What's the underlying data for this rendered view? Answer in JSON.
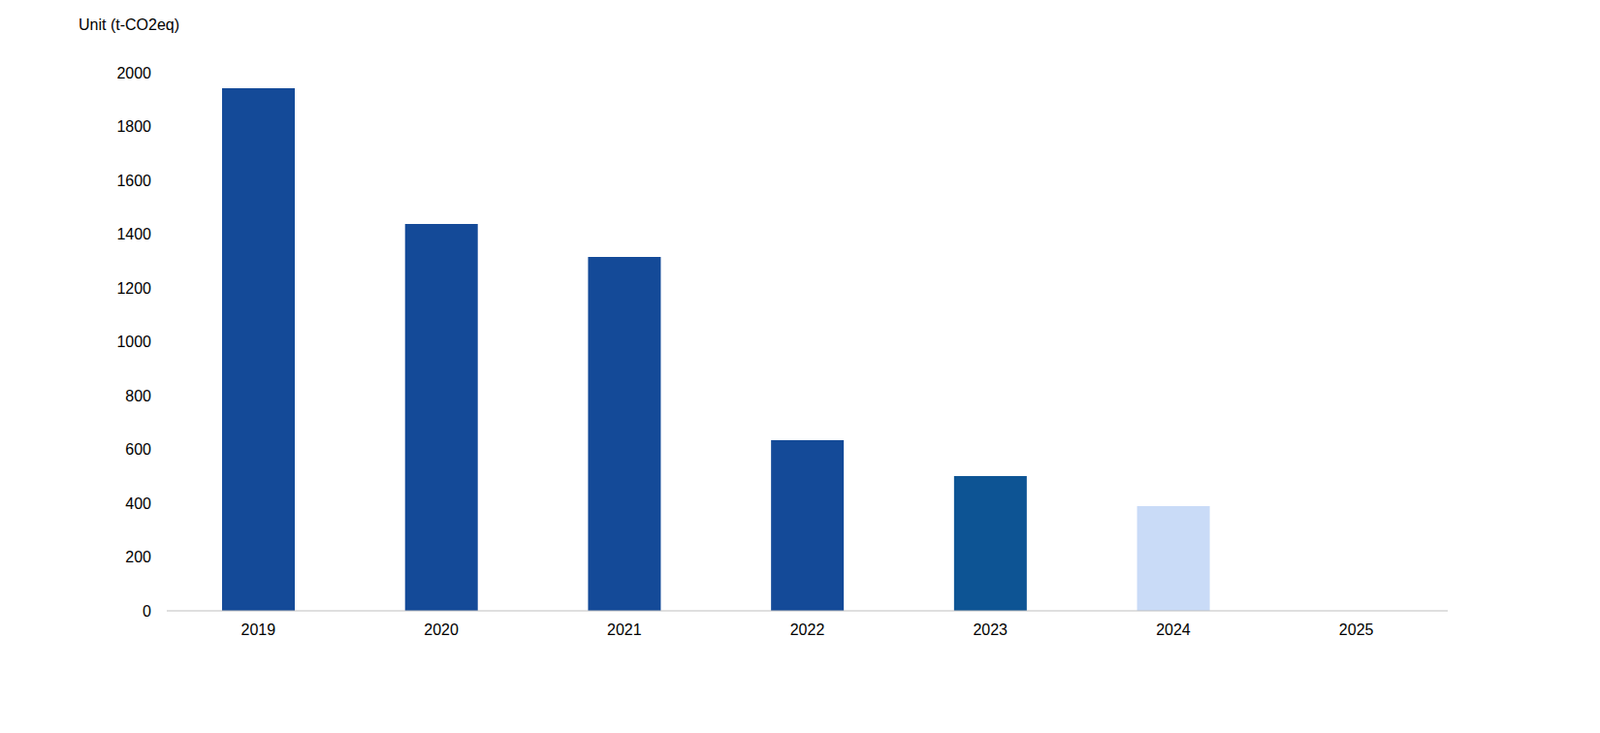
{
  "chart_data": {
    "type": "bar",
    "y_label": "Unit (t-CO2eq)",
    "categories": [
      "2019",
      "2020",
      "2021",
      "2022",
      "2023",
      "2024",
      "2025"
    ],
    "values": [
      1942,
      1438,
      1315,
      634,
      501,
      389,
      null
    ],
    "colors": [
      "#144a98",
      "#144a98",
      "#144a98",
      "#144a98",
      "#0d5494",
      "#c9dbf7",
      "#144a98"
    ],
    "ylim": [
      0,
      2000
    ],
    "yticks": [
      0,
      200,
      400,
      600,
      800,
      1000,
      1200,
      1400,
      1600,
      1800,
      2000
    ],
    "grid": false
  }
}
